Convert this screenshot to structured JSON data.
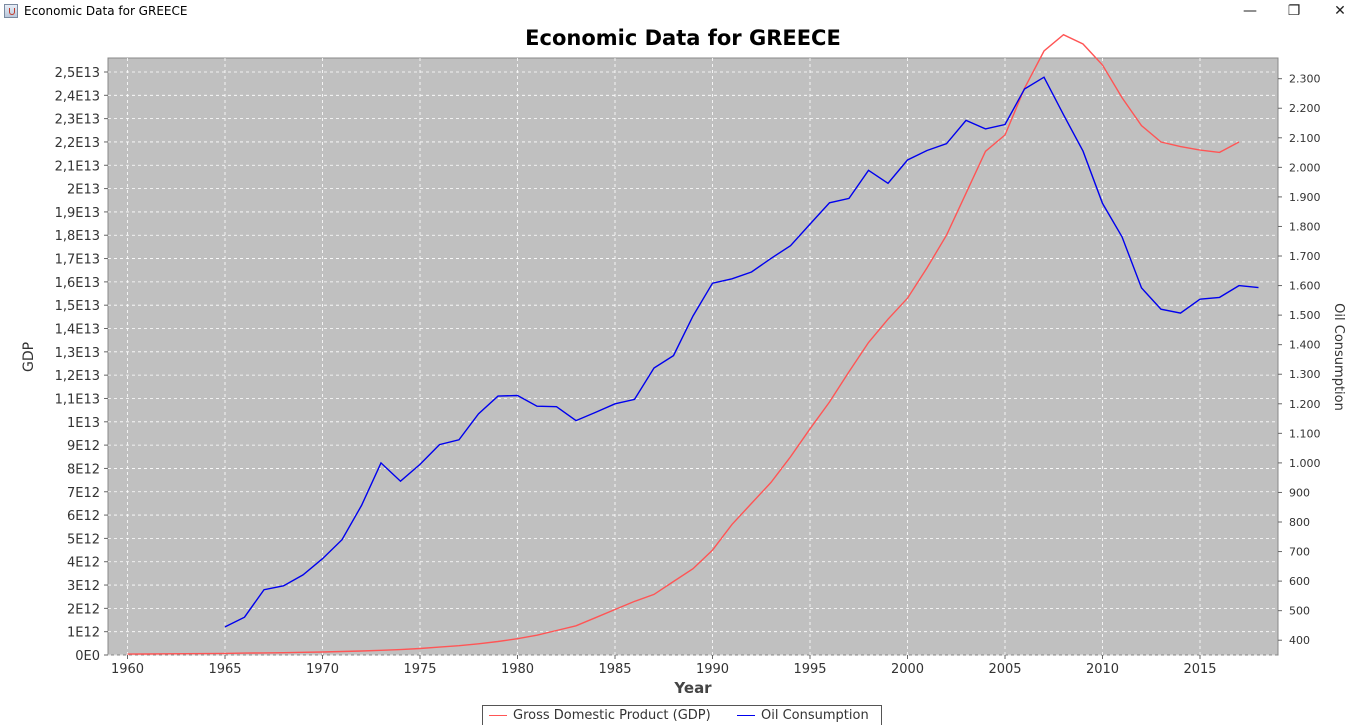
{
  "window": {
    "title": "Economic Data for GREECE",
    "minimize_glyph": "—",
    "maximize_glyph": "❐",
    "close_glyph": "✕"
  },
  "colors": {
    "plot_background": "#c0c0c0",
    "grid": "#ffffff",
    "gdp": "#ff5555",
    "oil": "#0000ee"
  },
  "chart_data": {
    "type": "line",
    "title": "Economic Data for GREECE",
    "xlabel": "Year",
    "ylabel_left": "GDP",
    "ylabel_right": "Oil Consumption",
    "xlim": [
      1959,
      2019
    ],
    "ylim_left": [
      0,
      25600000000000
    ],
    "ylim_right": [
      350,
      2370
    ],
    "x_ticks": [
      1960,
      1965,
      1970,
      1975,
      1980,
      1985,
      1990,
      1995,
      2000,
      2005,
      2010,
      2015
    ],
    "x_tick_labels": [
      "1960",
      "1965",
      "1970",
      "1975",
      "1980",
      "1985",
      "1990",
      "1995",
      "2000",
      "2005",
      "2010",
      "2015"
    ],
    "y_left_ticks": [
      0,
      1000000000000.0,
      2000000000000.0,
      3000000000000.0,
      4000000000000.0,
      5000000000000.0,
      6000000000000.0,
      7000000000000.0,
      8000000000000.0,
      9000000000000.0,
      10000000000000.0,
      11000000000000.0,
      12000000000000.0,
      13000000000000.0,
      14000000000000.0,
      15000000000000.0,
      16000000000000.0,
      17000000000000.0,
      18000000000000.0,
      19000000000000.0,
      20000000000000.0,
      21000000000000.0,
      22000000000000.0,
      23000000000000.0,
      24000000000000.0,
      25000000000000.0
    ],
    "y_left_tick_labels": [
      "0E0",
      "1E12",
      "2E12",
      "3E12",
      "4E12",
      "5E12",
      "6E12",
      "7E12",
      "8E12",
      "9E12",
      "1E13",
      "1,1E13",
      "1,2E13",
      "1,3E13",
      "1,4E13",
      "1,5E13",
      "1,6E13",
      "1,7E13",
      "1,8E13",
      "1,9E13",
      "2E13",
      "2,1E13",
      "2,2E13",
      "2,3E13",
      "2,4E13",
      "2,5E13"
    ],
    "y_right_ticks": [
      400,
      500,
      600,
      700,
      800,
      900,
      1000,
      1100,
      1200,
      1300,
      1400,
      1500,
      1600,
      1700,
      1800,
      1900,
      2000,
      2100,
      2200,
      2300
    ],
    "y_right_tick_labels": [
      "400",
      "500",
      "600",
      "700",
      "800",
      "900",
      "1.000",
      "1.100",
      "1.200",
      "1.300",
      "1.400",
      "1.500",
      "1.600",
      "1.700",
      "1.800",
      "1.900",
      "2.000",
      "2.100",
      "2.200",
      "2.300"
    ],
    "grid": true,
    "legend_position": "bottom",
    "series": [
      {
        "name": "Gross Domestic Product (GDP)",
        "axis": "left",
        "color": "#ff5555",
        "x": [
          1960,
          1961,
          1962,
          1963,
          1964,
          1965,
          1966,
          1967,
          1968,
          1969,
          1970,
          1971,
          1972,
          1973,
          1974,
          1975,
          1976,
          1977,
          1978,
          1979,
          1980,
          1981,
          1982,
          1983,
          1984,
          1985,
          1986,
          1987,
          1988,
          1989,
          1990,
          1991,
          1992,
          1993,
          1994,
          1995,
          1996,
          1997,
          1998,
          1999,
          2000,
          2001,
          2002,
          2003,
          2004,
          2005,
          2006,
          2007,
          2008,
          2009,
          2010,
          2011,
          2012,
          2013,
          2014,
          2015,
          2016,
          2017
        ],
        "y": [
          40000000000.0,
          45000000000.0,
          50000000000.0,
          55000000000.0,
          60000000000.0,
          70000000000.0,
          80000000000.0,
          90000000000.0,
          100000000000.0,
          115000000000.0,
          130000000000.0,
          150000000000.0,
          170000000000.0,
          200000000000.0,
          230000000000.0,
          280000000000.0,
          340000000000.0,
          400000000000.0,
          480000000000.0,
          580000000000.0,
          700000000000.0,
          850000000000.0,
          1050000000000.0,
          1250000000000.0,
          1600000000000.0,
          1950000000000.0,
          2300000000000.0,
          2600000000000.0,
          3150000000000.0,
          3700000000000.0,
          4500000000000.0,
          5600000000000.0,
          6500000000000.0,
          7400000000000.0,
          8500000000000.0,
          9700000000000.0,
          10850000000000.0,
          12150000000000.0,
          13400000000000.0,
          14400000000000.0,
          15300000000000.0,
          16600000000000.0,
          18000000000000.0,
          19800000000000.0,
          21600000000000.0,
          22300000000000.0,
          24300000000000.0,
          25900000000000.0,
          26600000000000.0,
          26200000000000.0,
          25300000000000.0,
          23900000000000.0,
          22700000000000.0,
          22000000000000.0,
          21800000000000.0,
          21650000000000.0,
          21550000000000.0,
          22000000000000.0
        ]
      },
      {
        "name": "Oil Consumption",
        "axis": "right",
        "color": "#0000ee",
        "x": [
          1965,
          1966,
          1967,
          1968,
          1969,
          1970,
          1971,
          1972,
          1973,
          1974,
          1975,
          1976,
          1977,
          1978,
          1979,
          1980,
          1981,
          1982,
          1983,
          1984,
          1985,
          1986,
          1987,
          1988,
          1989,
          1990,
          1991,
          1992,
          1993,
          1994,
          1995,
          1996,
          1997,
          1998,
          1999,
          2000,
          2001,
          2002,
          2003,
          2004,
          2005,
          2006,
          2007,
          2008,
          2009,
          2010,
          2011,
          2012,
          2013,
          2014,
          2015,
          2016,
          2017,
          2018
        ],
        "y": [
          445,
          478,
          571,
          584,
          621,
          676,
          740,
          856,
          1000,
          938,
          995,
          1062,
          1078,
          1166,
          1226,
          1228,
          1192,
          1190,
          1143,
          1171,
          1200,
          1215,
          1321,
          1363,
          1497,
          1608,
          1623,
          1646,
          1692,
          1735,
          1808,
          1880,
          1895,
          1990,
          1946,
          2025,
          2057,
          2080,
          2159,
          2130,
          2145,
          2265,
          2305,
          2178,
          2055,
          1878,
          1765,
          1592,
          1520,
          1507,
          1554,
          1560,
          1600,
          1593
        ]
      }
    ]
  }
}
